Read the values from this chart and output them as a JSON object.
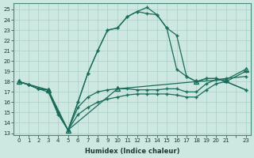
{
  "xlabel": "Humidex (Indice chaleur)",
  "bg_color": "#cce8e0",
  "grid_color": "#aacfc8",
  "line_color": "#1a6b5a",
  "xlim": [
    -0.5,
    23.5
  ],
  "ylim": [
    12.8,
    25.6
  ],
  "yticks": [
    13,
    14,
    15,
    16,
    17,
    18,
    19,
    20,
    21,
    22,
    23,
    24,
    25
  ],
  "xtick_labels": [
    "0",
    "1",
    "2",
    "3",
    "4",
    "5",
    "6",
    "7",
    "8",
    "9",
    "10",
    "11",
    "12",
    "13",
    "14",
    "15",
    "16",
    "17",
    "18",
    "19",
    "20",
    "21",
    "",
    "23"
  ],
  "curve_main_x": [
    0,
    1,
    2,
    3,
    4,
    5,
    6,
    7,
    8,
    9,
    10,
    11,
    12,
    13,
    14,
    15,
    16,
    17,
    18,
    19,
    20,
    21,
    23
  ],
  "curve_main_y": [
    18.0,
    17.7,
    17.3,
    17.2,
    15.0,
    13.3,
    16.0,
    18.8,
    21.0,
    23.0,
    23.2,
    24.3,
    24.8,
    24.6,
    24.5,
    23.2,
    22.5,
    18.5,
    18.0,
    18.3,
    18.3,
    18.0,
    17.2
  ],
  "curve_upper_x": [
    0,
    1,
    2,
    3,
    4,
    5,
    6,
    7,
    8,
    9,
    10,
    11,
    12,
    13,
    14,
    15,
    16,
    17,
    18,
    19,
    20,
    21,
    23
  ],
  "curve_upper_y": [
    18.0,
    17.7,
    17.3,
    17.0,
    14.8,
    13.3,
    16.0,
    18.8,
    21.0,
    23.0,
    23.2,
    24.3,
    24.8,
    25.2,
    24.5,
    23.2,
    19.2,
    18.5,
    18.0,
    18.3,
    18.3,
    18.0,
    17.2
  ],
  "curve_flat1_x": [
    0,
    1,
    2,
    3,
    4,
    5,
    6,
    7,
    8,
    9,
    10,
    11,
    12,
    13,
    14,
    15,
    16,
    17,
    18,
    19,
    20,
    21,
    23
  ],
  "curve_flat1_y": [
    18.0,
    17.7,
    17.3,
    17.2,
    15.0,
    13.3,
    15.5,
    16.5,
    17.0,
    17.2,
    17.3,
    17.3,
    17.2,
    17.2,
    17.2,
    17.3,
    17.3,
    17.0,
    17.0,
    17.8,
    18.2,
    18.3,
    18.5
  ],
  "curve_flat2_x": [
    0,
    1,
    2,
    3,
    4,
    5,
    6,
    7,
    8,
    9,
    10,
    11,
    12,
    13,
    14,
    15,
    16,
    17,
    18,
    19,
    20,
    21,
    23
  ],
  "curve_flat2_y": [
    18.0,
    17.7,
    17.3,
    17.2,
    15.0,
    13.3,
    14.8,
    15.5,
    16.0,
    16.3,
    16.5,
    16.7,
    16.8,
    16.8,
    16.8,
    16.8,
    16.7,
    16.5,
    16.5,
    17.2,
    17.8,
    18.0,
    19.0
  ],
  "curve_diag_x": [
    0,
    3,
    5,
    10,
    18,
    21,
    23
  ],
  "curve_diag_y": [
    18.0,
    17.2,
    13.3,
    17.3,
    18.0,
    18.2,
    19.2
  ]
}
